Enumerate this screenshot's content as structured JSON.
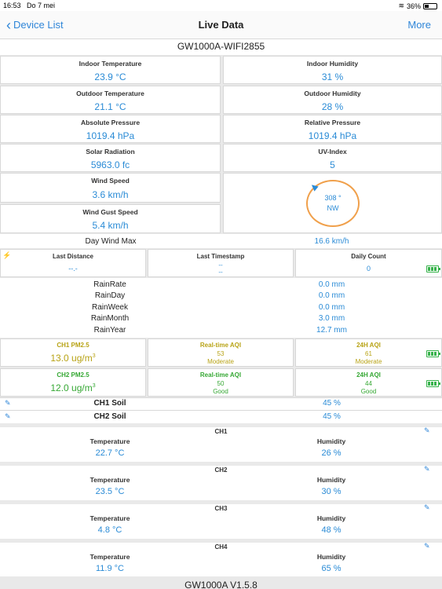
{
  "status": {
    "time": "16:53",
    "date": "Do 7 mei",
    "battery": "36%"
  },
  "nav": {
    "back": "Device List",
    "title": "Live Data",
    "more": "More"
  },
  "station": "GW1000A-WIFI2855",
  "cells": {
    "indoor_temp": {
      "label": "Indoor Temperature",
      "value": "23.9 °C"
    },
    "indoor_hum": {
      "label": "Indoor Humidity",
      "value": "31 %"
    },
    "outdoor_temp": {
      "label": "Outdoor Temperature",
      "value": "21.1 °C"
    },
    "outdoor_hum": {
      "label": "Outdoor Humidity",
      "value": "28 %"
    },
    "abs_press": {
      "label": "Absolute Pressure",
      "value": "1019.4 hPa"
    },
    "rel_press": {
      "label": "Relative Pressure",
      "value": "1019.4 hPa"
    },
    "solar": {
      "label": "Solar Radiation",
      "value": "5963.0 fc"
    },
    "uv": {
      "label": "UV-Index",
      "value": "5"
    },
    "wind": {
      "label": "Wind Speed",
      "value": "3.6 km/h"
    },
    "gust": {
      "label": "Wind Gust Speed",
      "value": "5.4 km/h"
    }
  },
  "compass": {
    "degrees": "308 °",
    "direction": "NW"
  },
  "day_wind": {
    "label": "Day Wind Max",
    "value": "16.6 km/h"
  },
  "lightning": {
    "distance_label": "Last Distance",
    "distance_value": "--.-",
    "timestamp_label": "Last Timestamp",
    "timestamp_line1": "--",
    "timestamp_line2": "--",
    "count_label": "Daily Count",
    "count_value": "0"
  },
  "rain": [
    {
      "label": "RainRate",
      "value": "0.0 mm"
    },
    {
      "label": "RainDay",
      "value": "0.0 mm"
    },
    {
      "label": "RainWeek",
      "value": "0.0 mm"
    },
    {
      "label": "RainMonth",
      "value": "3.0 mm"
    },
    {
      "label": "RainYear",
      "value": "12.7 mm"
    }
  ],
  "pm": [
    {
      "label": "CH1 PM2.5",
      "value": "13.0 ug/m",
      "sup": "3",
      "rt_label": "Real-time AQI",
      "rt_value": "53",
      "rt_status": "Moderate",
      "h24_label": "24H AQI",
      "h24_value": "61",
      "h24_status": "Moderate"
    },
    {
      "label": "CH2 PM2.5",
      "value": "12.0 ug/m",
      "sup": "3",
      "rt_label": "Real-time AQI",
      "rt_value": "50",
      "rt_status": "Good",
      "h24_label": "24H AQI",
      "h24_value": "44",
      "h24_status": "Good"
    }
  ],
  "soil": [
    {
      "label": "CH1 Soil",
      "value": "45 %"
    },
    {
      "label": "CH2 Soil",
      "value": "45 %"
    }
  ],
  "channels": [
    {
      "title": "CH1",
      "temp_label": "Temperature",
      "temp": "22.7 °C",
      "hum_label": "Humidity",
      "hum": "26 %"
    },
    {
      "title": "CH2",
      "temp_label": "Temperature",
      "temp": "23.5 °C",
      "hum_label": "Humidity",
      "hum": "30 %"
    },
    {
      "title": "CH3",
      "temp_label": "Temperature",
      "temp": "4.8 °C",
      "hum_label": "Humidity",
      "hum": "48 %"
    },
    {
      "title": "CH4",
      "temp_label": "Temperature",
      "temp": "11.9 °C",
      "hum_label": "Humidity",
      "hum": "65 %"
    }
  ],
  "footer": "GW1000A V1.5.8",
  "colors": {
    "accent": "#2f86d8",
    "value": "#2a8bd6",
    "compass": "#f0a04b",
    "moderate": "#b8a315",
    "good": "#36a834"
  }
}
